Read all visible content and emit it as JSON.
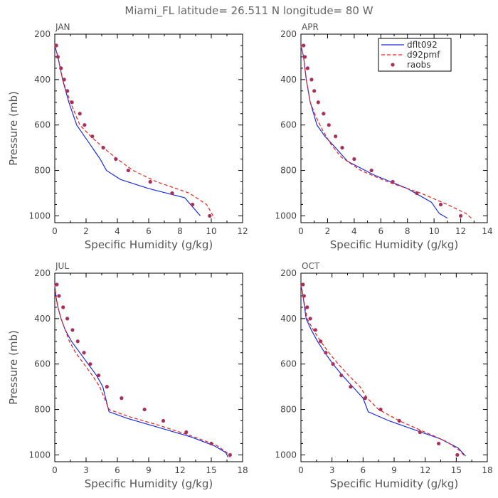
{
  "figure": {
    "title": "Miami_FL   latitude= 26.511 N longitude= 80 W"
  },
  "colors": {
    "dflt092": "#1a2fe6",
    "d92pmf": "#e8221c",
    "raobs": "#a8305a",
    "frame": "#000000",
    "text": "#555555"
  },
  "chart_data": [
    {
      "type": "line",
      "panel": "JAN",
      "xlabel": "Specific Humidity (g/kg)",
      "ylabel": "Pressure (mb)",
      "xlim": [
        0,
        12
      ],
      "ylim": [
        1030,
        200
      ],
      "xticks": [
        0,
        2,
        4,
        6,
        8,
        10,
        12
      ],
      "yticks": [
        200,
        400,
        600,
        800,
        1000
      ],
      "legend": "top-right",
      "series": [
        {
          "name": "dflt092",
          "style": "solid",
          "q": [
            0,
            0.2,
            0.5,
            0.9,
            1.4,
            1.9,
            2.4,
            2.9,
            3.3,
            4.2,
            6.0,
            8.3,
            8.8,
            9.3
          ],
          "p": [
            250,
            300,
            400,
            500,
            600,
            650,
            700,
            750,
            800,
            840,
            880,
            920,
            960,
            1000
          ]
        },
        {
          "name": "d92pmf",
          "style": "dashed",
          "q": [
            0,
            0.2,
            0.5,
            1.0,
            1.6,
            2.3,
            3.1,
            4.0,
            5.0,
            6.5,
            8.6,
            9.7,
            10.2
          ],
          "p": [
            250,
            300,
            400,
            500,
            600,
            650,
            700,
            750,
            800,
            850,
            900,
            950,
            1010
          ]
        },
        {
          "name": "raobs",
          "style": "points",
          "q": [
            0.1,
            0.2,
            0.4,
            0.6,
            0.8,
            1.1,
            1.6,
            1.9,
            2.4,
            3.1,
            3.9,
            4.7,
            6.1,
            7.5,
            8.8,
            9.9
          ],
          "p": [
            250,
            300,
            350,
            400,
            450,
            500,
            550,
            600,
            650,
            700,
            750,
            800,
            850,
            900,
            950,
            1000
          ]
        }
      ]
    },
    {
      "type": "line",
      "panel": "APR",
      "xlabel": "Specific Humidity (g/kg)",
      "ylabel": "",
      "xlim": [
        0,
        14
      ],
      "ylim": [
        1030,
        200
      ],
      "xticks": [
        0,
        2,
        4,
        6,
        8,
        10,
        12,
        14
      ],
      "yticks": [
        200,
        400,
        600,
        800,
        1000
      ],
      "series": [
        {
          "name": "dflt092",
          "style": "solid",
          "q": [
            0,
            0.2,
            0.4,
            0.7,
            1.2,
            1.8,
            2.6,
            3.5,
            5.5,
            8.0,
            9.8,
            10.4,
            11.0
          ],
          "p": [
            250,
            300,
            400,
            500,
            600,
            650,
            700,
            760,
            820,
            880,
            940,
            990,
            1010
          ]
        },
        {
          "name": "d92pmf",
          "style": "dashed",
          "q": [
            0,
            0.2,
            0.4,
            0.7,
            1.1,
            1.6,
            2.2,
            3.0,
            4.5,
            6.5,
            9.0,
            11.0,
            12.4,
            12.8
          ],
          "p": [
            250,
            300,
            400,
            500,
            560,
            620,
            680,
            740,
            800,
            850,
            900,
            950,
            990,
            1010
          ]
        },
        {
          "name": "raobs",
          "style": "points",
          "q": [
            0.2,
            0.3,
            0.5,
            0.8,
            1.0,
            1.3,
            1.7,
            2.1,
            2.6,
            3.1,
            4.0,
            5.3,
            6.9,
            8.7,
            10.5,
            12.0
          ],
          "p": [
            250,
            300,
            350,
            400,
            450,
            500,
            550,
            600,
            650,
            700,
            750,
            800,
            850,
            900,
            950,
            1000
          ]
        }
      ]
    },
    {
      "type": "line",
      "panel": "JUL",
      "xlabel": "Specific Humidity (g/kg)",
      "ylabel": "Pressure (mb)",
      "xlim": [
        0,
        18
      ],
      "ylim": [
        1030,
        200
      ],
      "xticks": [
        0,
        3,
        6,
        9,
        12,
        15,
        18
      ],
      "yticks": [
        200,
        400,
        600,
        800,
        1000
      ],
      "series": [
        {
          "name": "dflt092",
          "style": "solid",
          "q": [
            0,
            0.1,
            0.3,
            0.6,
            1.0,
            1.6,
            2.4,
            3.2,
            4.0,
            4.6,
            5.2,
            7.0,
            10.0,
            13.0,
            15.3,
            16.4,
            16.6
          ],
          "p": [
            250,
            300,
            350,
            400,
            450,
            500,
            550,
            600,
            650,
            700,
            810,
            840,
            880,
            920,
            960,
            990,
            1010
          ]
        },
        {
          "name": "d92pmf",
          "style": "dashed",
          "q": [
            0,
            0.1,
            0.3,
            0.6,
            1.0,
            1.4,
            2.0,
            2.8,
            3.6,
            4.3,
            5.2,
            7.0,
            10.0,
            13.0,
            15.4,
            16.5,
            16.8
          ],
          "p": [
            250,
            300,
            350,
            400,
            450,
            500,
            550,
            600,
            650,
            700,
            800,
            830,
            870,
            915,
            955,
            990,
            1010
          ]
        },
        {
          "name": "raobs",
          "style": "points",
          "q": [
            0.2,
            0.4,
            0.8,
            1.2,
            1.7,
            2.2,
            2.8,
            3.4,
            4.2,
            5.0,
            6.4,
            8.6,
            10.4,
            12.6,
            15.0,
            16.8
          ],
          "p": [
            250,
            300,
            350,
            400,
            450,
            500,
            550,
            600,
            650,
            700,
            750,
            800,
            850,
            900,
            950,
            1000
          ]
        }
      ]
    },
    {
      "type": "line",
      "panel": "OCT",
      "xlabel": "Specific Humidity (g/kg)",
      "ylabel": "",
      "xlim": [
        0,
        18
      ],
      "ylim": [
        1030,
        200
      ],
      "xticks": [
        0,
        3,
        6,
        9,
        12,
        15,
        18
      ],
      "yticks": [
        200,
        400,
        600,
        800,
        1000
      ],
      "series": [
        {
          "name": "dflt092",
          "style": "solid",
          "q": [
            0,
            0.2,
            0.5,
            1.0,
            1.6,
            2.3,
            3.1,
            4.0,
            5.0,
            6.0,
            6.5,
            8.5,
            11.0,
            13.5,
            15.2,
            15.9
          ],
          "p": [
            250,
            300,
            400,
            450,
            500,
            550,
            600,
            650,
            700,
            750,
            810,
            850,
            890,
            930,
            970,
            1005
          ]
        },
        {
          "name": "d92pmf",
          "style": "dashed",
          "q": [
            0,
            0.2,
            0.6,
            1.2,
            1.9,
            2.7,
            3.6,
            4.6,
            5.7,
            6.4,
            7.5,
            9.5,
            12.0,
            14.0,
            15.3,
            15.8
          ],
          "p": [
            250,
            300,
            400,
            450,
            500,
            550,
            600,
            650,
            700,
            750,
            800,
            850,
            900,
            940,
            980,
            1005
          ]
        },
        {
          "name": "raobs",
          "style": "points",
          "q": [
            0.2,
            0.3,
            0.6,
            0.9,
            1.4,
            1.9,
            2.4,
            3.1,
            3.9,
            4.8,
            6.2,
            7.7,
            9.5,
            11.5,
            13.3,
            15.1
          ],
          "p": [
            250,
            300,
            350,
            400,
            450,
            500,
            550,
            600,
            650,
            700,
            750,
            800,
            850,
            900,
            950,
            1000
          ]
        }
      ]
    }
  ]
}
